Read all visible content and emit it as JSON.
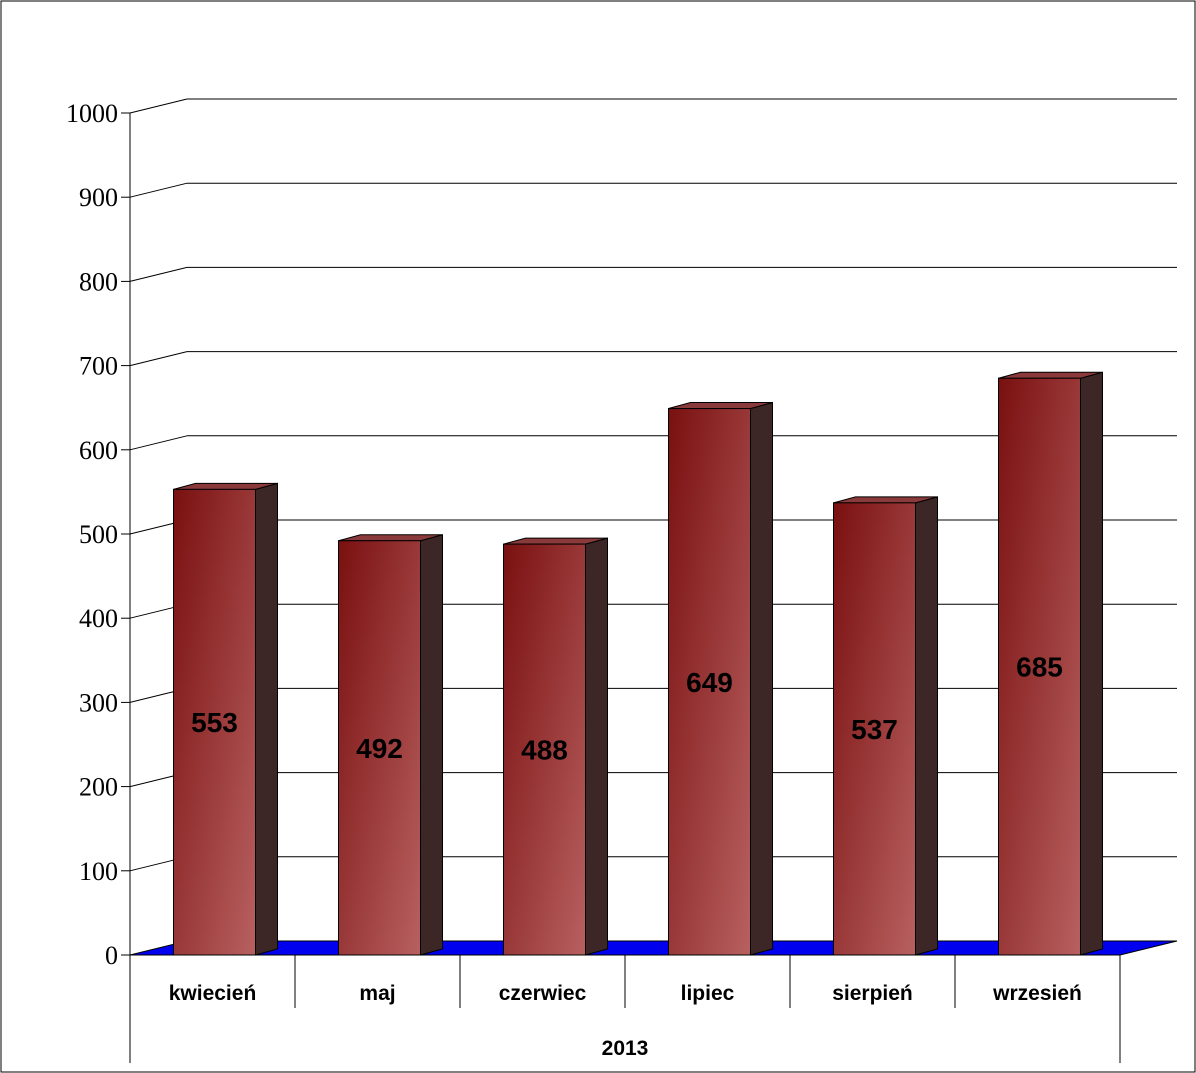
{
  "chart_data": {
    "type": "bar",
    "categories": [
      "kwiecień",
      "maj",
      "czerwiec",
      "lipiec",
      "sierpień",
      "wrzesień"
    ],
    "values": [
      553,
      492,
      488,
      649,
      537,
      685
    ],
    "group_label": "2013",
    "ylim": [
      0,
      1000
    ],
    "yticks": [
      0,
      100,
      200,
      300,
      400,
      500,
      600,
      700,
      800,
      900,
      1000
    ],
    "grid": true,
    "three_d": true,
    "colors": {
      "bar_front_dark": "#7a1010",
      "bar_front_light": "#b86060",
      "bar_side": "#3d2626",
      "bar_top": "#8a3a3a",
      "floor": "#0000ee",
      "grid": "#000000"
    }
  }
}
